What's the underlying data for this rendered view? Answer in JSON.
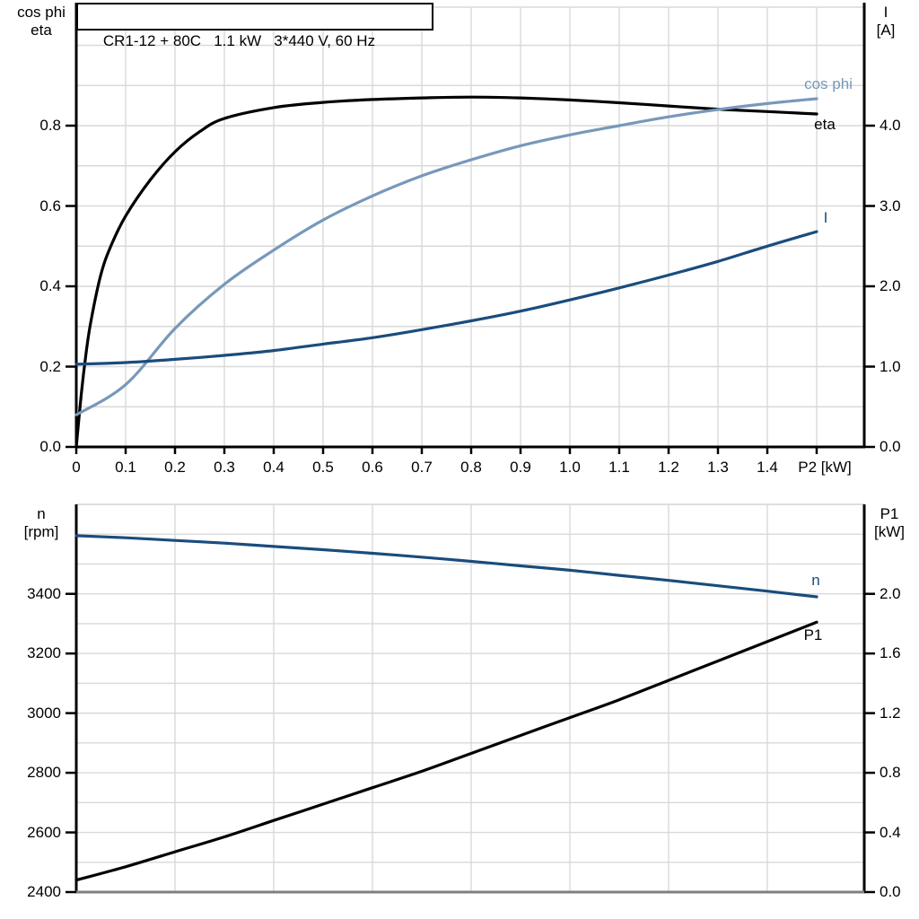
{
  "title": "CR1-12 + 80C   1.1 kW   3*440 V, 60 Hz",
  "colors": {
    "black": "#000000",
    "dark_blue": "#1a4c7d",
    "light_blue": "#7798ba",
    "grid": "#d9d9d9",
    "gray_axis": "#7f7f7f",
    "background": "#ffffff"
  },
  "chart_data": [
    {
      "type": "line",
      "title": "CR1-12 + 80C   1.1 kW   3*440 V, 60 Hz",
      "xlabel": "P2 [kW]",
      "ylabel_left_lines": [
        "cos phi",
        "eta"
      ],
      "ylabel_right_lines": [
        "I",
        "[A]"
      ],
      "xlim": [
        0,
        1.5964
      ],
      "ylim_left": [
        0,
        1.095
      ],
      "ylim_right": [
        0,
        5.475
      ],
      "xtick_values": [
        0,
        0.1,
        0.2,
        0.3,
        0.4,
        0.5,
        0.6,
        0.7,
        0.8,
        0.9,
        1.0,
        1.1,
        1.2,
        1.3,
        1.4,
        1.5
      ],
      "xtick_labels": [
        "0",
        "0.1",
        "0.2",
        "0.3",
        "0.4",
        "0.5",
        "0.6",
        "0.7",
        "0.8",
        "0.9",
        "1.0",
        "1.1",
        "1.2",
        "1.3",
        "1.4",
        ""
      ],
      "ytick_left_values": [
        0,
        0.2,
        0.4,
        0.6,
        0.8
      ],
      "ytick_left_labels": [
        "0.0",
        "0.2",
        "0.4",
        "0.6",
        "0.8"
      ],
      "ytick_right_values": [
        0,
        1,
        2,
        3,
        4
      ],
      "ytick_right_labels": [
        "0.0",
        "1.0",
        "2.0",
        "3.0",
        "4.0"
      ],
      "xgrid": [
        0.1,
        0.2,
        0.3,
        0.4,
        0.5,
        0.6,
        0.7,
        0.8,
        0.9,
        1.0,
        1.1,
        1.2,
        1.3,
        1.4,
        1.5
      ],
      "ygrid_left_units": [
        0.1,
        0.2,
        0.3,
        0.4,
        0.5,
        0.6,
        0.7,
        0.8,
        0.9,
        1.0
      ],
      "grid": true,
      "legend_position": "end-of-curve",
      "series": [
        {
          "name": "eta",
          "label": "eta",
          "axis": "left",
          "color": "black",
          "unit": "",
          "x": [
            0,
            0.01,
            0.02,
            0.03,
            0.05,
            0.07,
            0.1,
            0.15,
            0.2,
            0.25,
            0.3,
            0.4,
            0.5,
            0.6,
            0.7,
            0.8,
            0.9,
            1.0,
            1.1,
            1.2,
            1.3,
            1.4,
            1.5
          ],
          "values": [
            0,
            0.13,
            0.235,
            0.315,
            0.43,
            0.5,
            0.575,
            0.665,
            0.735,
            0.785,
            0.818,
            0.845,
            0.858,
            0.865,
            0.869,
            0.871,
            0.869,
            0.864,
            0.857,
            0.849,
            0.841,
            0.835,
            0.829
          ]
        },
        {
          "name": "cos phi",
          "label": "cos phi",
          "axis": "left",
          "color": "light_blue",
          "unit": "",
          "x": [
            0,
            0.1,
            0.2,
            0.3,
            0.4,
            0.5,
            0.6,
            0.7,
            0.8,
            0.9,
            1.0,
            1.1,
            1.2,
            1.3,
            1.4,
            1.5
          ],
          "values": [
            0.08,
            0.155,
            0.295,
            0.405,
            0.49,
            0.565,
            0.625,
            0.675,
            0.715,
            0.75,
            0.777,
            0.8,
            0.822,
            0.84,
            0.855,
            0.867
          ]
        },
        {
          "name": "I",
          "label": "I",
          "axis": "right",
          "color": "dark_blue",
          "unit": "A",
          "x": [
            0,
            0.1,
            0.2,
            0.3,
            0.4,
            0.5,
            0.6,
            0.7,
            0.8,
            0.9,
            1.0,
            1.1,
            1.2,
            1.3,
            1.4,
            1.5
          ],
          "values": [
            1.03,
            1.05,
            1.09,
            1.14,
            1.2,
            1.28,
            1.36,
            1.46,
            1.57,
            1.69,
            1.83,
            1.98,
            2.14,
            2.31,
            2.5,
            2.68
          ]
        }
      ]
    },
    {
      "type": "line",
      "title": "",
      "xlabel": "",
      "ylabel_left_lines": [
        "n",
        "[rpm]"
      ],
      "ylabel_right_lines": [
        "P1",
        "[kW]"
      ],
      "xlim": [
        0,
        1.5964
      ],
      "ylim_left": [
        2400,
        3700
      ],
      "ylim_right": [
        0,
        2.6
      ],
      "xtick_values": [],
      "xtick_labels": [],
      "ytick_left_values": [
        2400,
        2600,
        2800,
        3000,
        3200,
        3400
      ],
      "ytick_left_labels": [
        "2400",
        "2600",
        "2800",
        "3000",
        "3200",
        "3400"
      ],
      "ytick_right_values": [
        0,
        0.4,
        0.8,
        1.2,
        1.6,
        2.0
      ],
      "ytick_right_labels": [
        "0.0",
        "0.4",
        "0.8",
        "1.2",
        "1.6",
        "2.0"
      ],
      "xgrid": [
        0.2,
        0.4,
        0.6,
        0.8,
        1.0,
        1.2,
        1.4
      ],
      "ygrid_left_units": [
        2500,
        2600,
        2700,
        2800,
        2900,
        3000,
        3100,
        3200,
        3300,
        3400,
        3500,
        3600,
        3700
      ],
      "grid": true,
      "legend_position": "end-of-curve",
      "series": [
        {
          "name": "n",
          "label": "n",
          "axis": "left",
          "color": "dark_blue",
          "unit": "rpm",
          "x": [
            0,
            0.1,
            0.2,
            0.3,
            0.4,
            0.5,
            0.6,
            0.7,
            0.8,
            0.9,
            1.0,
            1.1,
            1.2,
            1.3,
            1.4,
            1.5
          ],
          "values": [
            3595,
            3588,
            3579,
            3570,
            3559,
            3548,
            3536,
            3523,
            3509,
            3494,
            3479,
            3462,
            3445,
            3427,
            3409,
            3390
          ]
        },
        {
          "name": "P1",
          "label": "P1",
          "axis": "right",
          "color": "black",
          "unit": "kW",
          "x": [
            0,
            0.1,
            0.2,
            0.3,
            0.4,
            0.5,
            0.6,
            0.7,
            0.8,
            0.9,
            1.0,
            1.1,
            1.2,
            1.3,
            1.4,
            1.5
          ],
          "values": [
            0.08,
            0.17,
            0.27,
            0.37,
            0.48,
            0.59,
            0.7,
            0.81,
            0.93,
            1.05,
            1.17,
            1.29,
            1.42,
            1.55,
            1.68,
            1.81
          ]
        }
      ]
    }
  ]
}
